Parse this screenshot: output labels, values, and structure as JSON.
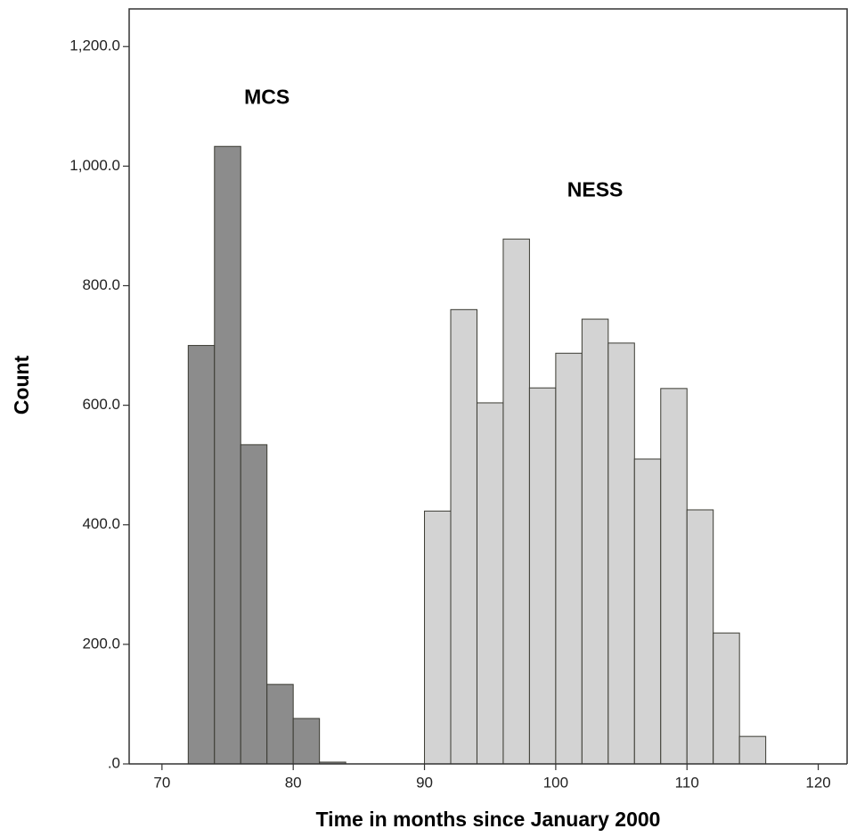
{
  "chart_data": {
    "type": "histogram",
    "x_label": "Time in months since January 2000",
    "y_label": "Count",
    "series": [
      {
        "name": "MCS",
        "color": "#8c8c8c",
        "bins": [
          72,
          74,
          76,
          78,
          80,
          82,
          84
        ],
        "values": [
          700,
          1033,
          534,
          133,
          76,
          3
        ]
      },
      {
        "name": "NESS",
        "color": "#d3d3d3",
        "bins": [
          90,
          92,
          94,
          96,
          98,
          100,
          102,
          104,
          106,
          108,
          110,
          112,
          114,
          116
        ],
        "values": [
          423,
          760,
          604,
          878,
          629,
          687,
          744,
          704,
          510,
          628,
          425,
          219,
          46
        ]
      }
    ],
    "xlim": [
      67.5,
      122.2
    ],
    "ylim": [
      0,
      1263
    ],
    "xticks": [
      70,
      80,
      90,
      100,
      110,
      120
    ],
    "yticks": [
      {
        "value": 0,
        "label": ".0"
      },
      {
        "value": 200,
        "label": "200.0"
      },
      {
        "value": 400,
        "label": "400.0"
      },
      {
        "value": 600,
        "label": "600.0"
      },
      {
        "value": 800,
        "label": "800.0"
      },
      {
        "value": 1000,
        "label": "1,000.0"
      },
      {
        "value": 1200,
        "label": "1,200.0"
      }
    ]
  }
}
